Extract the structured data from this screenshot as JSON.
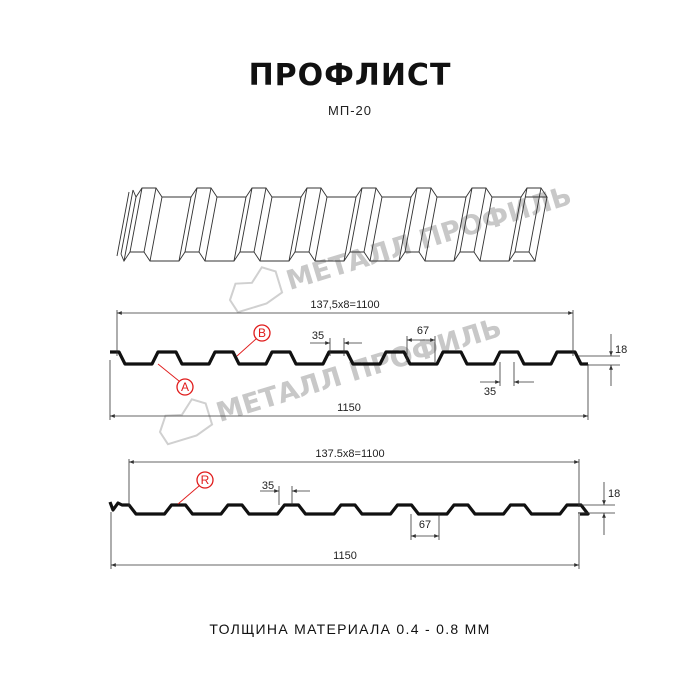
{
  "header": {
    "title": "ПРОФЛИСТ",
    "subtitle": "МП-20"
  },
  "watermark": {
    "text": "МЕТАЛЛ ПРОФИЛЬ"
  },
  "profile_1": {
    "pitch_label": "137,5x8=1100",
    "total_width_label": "1150",
    "rib_top_label": "35",
    "valley_label": "67",
    "rib_bottom_label": "35",
    "height_label": "18",
    "marker_b": "B",
    "marker_a": "A"
  },
  "profile_2": {
    "pitch_label": "137.5x8=1100",
    "total_width_label": "1150",
    "rib_top_label": "35",
    "valley_label": "67",
    "height_label": "18",
    "marker_r": "R"
  },
  "footer": {
    "thickness_text": "ТОЛЩИНА МАТЕРИАЛА 0.4 - 0.8 ММ"
  },
  "colors": {
    "profile": "#111111",
    "marker": "#e01b1b",
    "watermark": "#d3d3d3",
    "dimension": "#333333"
  }
}
